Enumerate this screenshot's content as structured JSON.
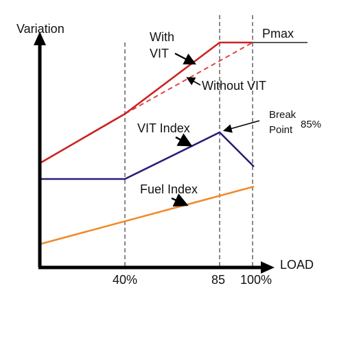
{
  "labels": {
    "y_axis": "Variation",
    "x_axis": "LOAD",
    "pmax": "Pmax",
    "with_vit_line1": "With",
    "with_vit_line2": "VIT",
    "without_vit": "Without VIT",
    "break_line1": "Break",
    "break_line2": "Point",
    "break_pct": "85%",
    "vit_index": "VIT Index",
    "fuel_index": "Fuel Index"
  },
  "ticks": {
    "t40": "40%",
    "t85": "85",
    "t100": "100%"
  },
  "colors": {
    "with_vit": "#cc2222",
    "without_vit": "#e04444",
    "vit_index": "#2e1a7a",
    "fuel_index": "#f08a2a",
    "axis": "#000000",
    "guide": "#555555"
  }
}
